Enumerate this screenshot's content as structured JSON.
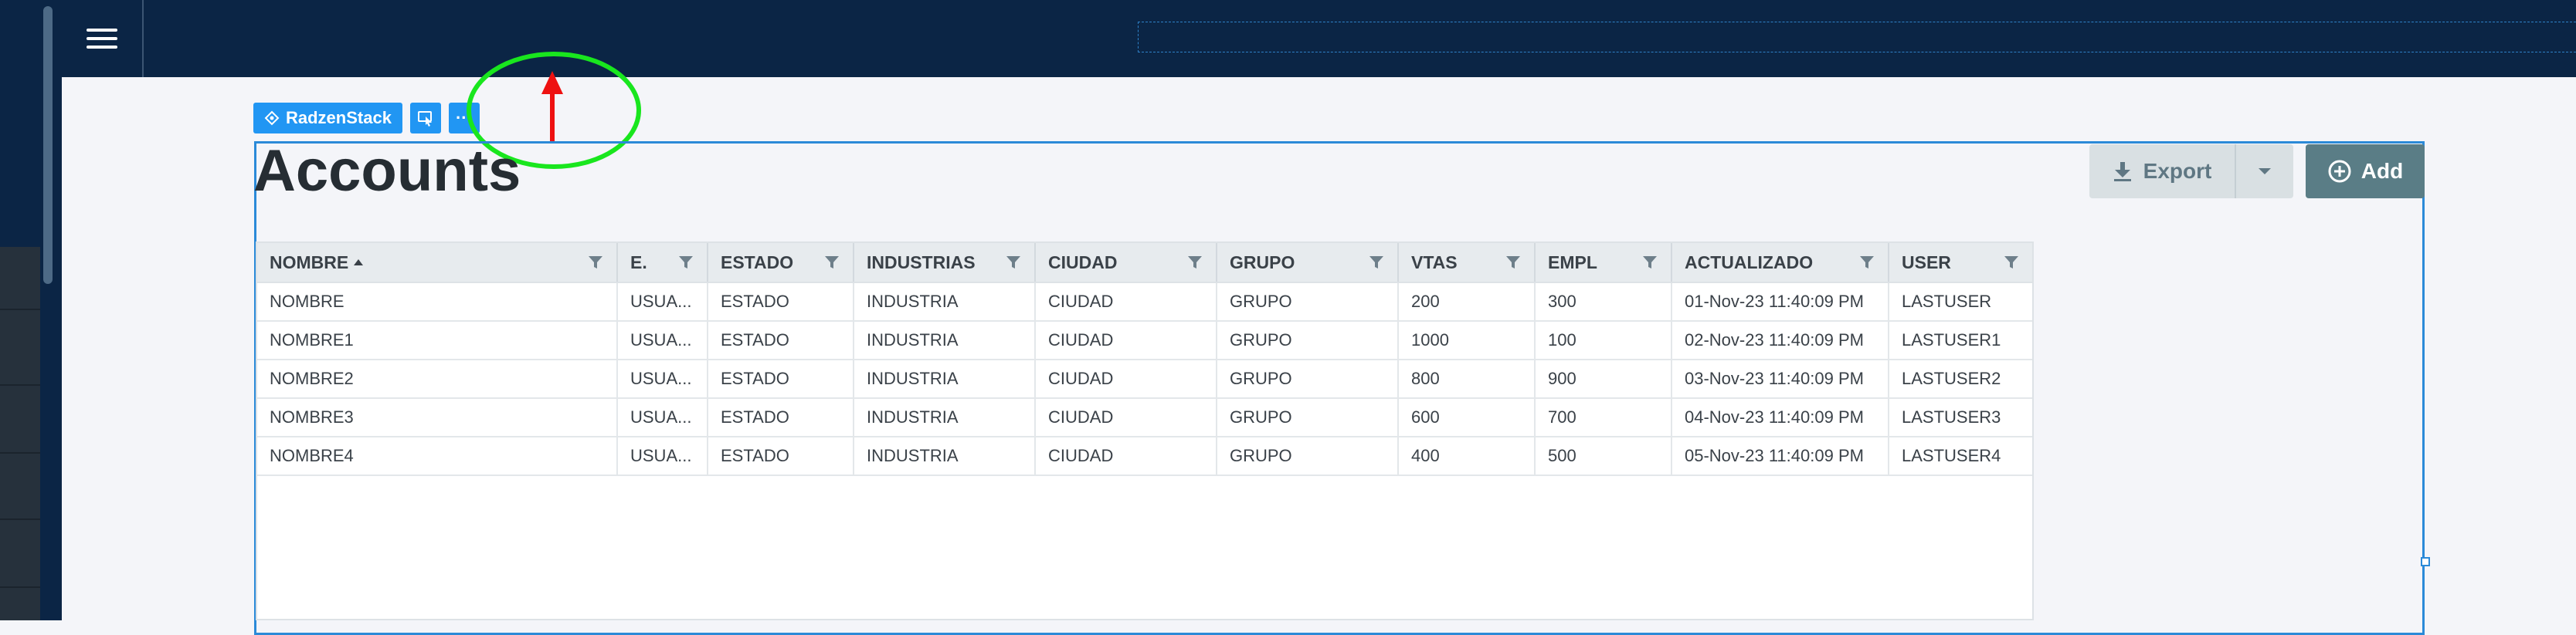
{
  "toolbar": {
    "component_label": "RadzenStack",
    "more_label": "···"
  },
  "page": {
    "title": "Accounts"
  },
  "actions": {
    "export_label": "Export",
    "add_label": "Add"
  },
  "icons": {
    "filter": "filter-icon",
    "sort": "sort-asc-icon",
    "export": "download-icon",
    "add": "plus-circle-icon",
    "menu": "hamburger-icon"
  },
  "colors": {
    "topbar": "#0b2545",
    "accent": "#2196f3",
    "add_button": "#5a7d86",
    "annotation_circle": "#19e61e",
    "annotation_arrow": "#ee1111"
  },
  "grid": {
    "columns": [
      "NOMBRE",
      "E.",
      "ESTADO",
      "INDUSTRIAS",
      "CIUDAD",
      "GRUPO",
      "VTAS",
      "EMPL",
      "ACTUALIZADO",
      "USER"
    ],
    "sorted_column": "NOMBRE",
    "sort_direction": "asc",
    "rows": [
      [
        "NOMBRE",
        "USUA...",
        "ESTADO",
        "INDUSTRIA",
        "CIUDAD",
        "GRUPO",
        "200",
        "300",
        "01-Nov-23 11:40:09 PM",
        "LASTUSER"
      ],
      [
        "NOMBRE1",
        "USUA...",
        "ESTADO",
        "INDUSTRIA",
        "CIUDAD",
        "GRUPO",
        "1000",
        "100",
        "02-Nov-23 11:40:09 PM",
        "LASTUSER1"
      ],
      [
        "NOMBRE2",
        "USUA...",
        "ESTADO",
        "INDUSTRIA",
        "CIUDAD",
        "GRUPO",
        "800",
        "900",
        "03-Nov-23 11:40:09 PM",
        "LASTUSER2"
      ],
      [
        "NOMBRE3",
        "USUA...",
        "ESTADO",
        "INDUSTRIA",
        "CIUDAD",
        "GRUPO",
        "600",
        "700",
        "04-Nov-23 11:40:09 PM",
        "LASTUSER3"
      ],
      [
        "NOMBRE4",
        "USUA...",
        "ESTADO",
        "INDUSTRIA",
        "CIUDAD",
        "GRUPO",
        "400",
        "500",
        "05-Nov-23 11:40:09 PM",
        "LASTUSER4"
      ]
    ]
  }
}
